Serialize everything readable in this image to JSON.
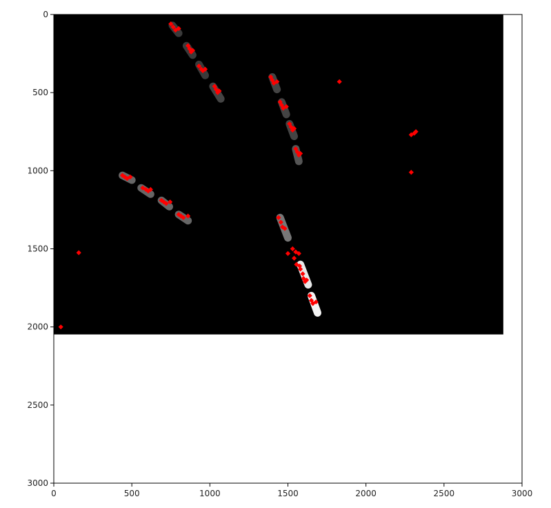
{
  "chart_data": {
    "type": "scatter",
    "title": "",
    "xlabel": "",
    "ylabel": "",
    "xlim": [
      0,
      3000
    ],
    "ylim": [
      3000,
      0
    ],
    "y_inverted": true,
    "grid": false,
    "legend": "none",
    "x_ticks": [
      0,
      500,
      1000,
      1500,
      2000,
      2500,
      3000
    ],
    "y_ticks": [
      0,
      500,
      1000,
      1500,
      2000,
      2500,
      3000
    ],
    "background_image": {
      "kind": "grayscale image",
      "extent_x": [
        0,
        2880
      ],
      "extent_y": [
        0,
        2048
      ],
      "background_color": "#000000",
      "objects": [
        {
          "x1": 760,
          "y1": 70,
          "x2": 800,
          "y2": 120,
          "shade": "#3a3a3a"
        },
        {
          "x1": 850,
          "y1": 200,
          "x2": 890,
          "y2": 260,
          "shade": "#3a3a3a"
        },
        {
          "x1": 930,
          "y1": 320,
          "x2": 970,
          "y2": 390,
          "shade": "#3a3a3a"
        },
        {
          "x1": 1020,
          "y1": 460,
          "x2": 1070,
          "y2": 540,
          "shade": "#444444"
        },
        {
          "x1": 1400,
          "y1": 400,
          "x2": 1430,
          "y2": 480,
          "shade": "#444444"
        },
        {
          "x1": 1460,
          "y1": 560,
          "x2": 1490,
          "y2": 640,
          "shade": "#444444"
        },
        {
          "x1": 1510,
          "y1": 700,
          "x2": 1540,
          "y2": 780,
          "shade": "#444444"
        },
        {
          "x1": 1550,
          "y1": 860,
          "x2": 1570,
          "y2": 940,
          "shade": "#555555"
        },
        {
          "x1": 440,
          "y1": 1030,
          "x2": 500,
          "y2": 1060,
          "shade": "#666666"
        },
        {
          "x1": 560,
          "y1": 1110,
          "x2": 620,
          "y2": 1150,
          "shade": "#666666"
        },
        {
          "x1": 690,
          "y1": 1190,
          "x2": 740,
          "y2": 1230,
          "shade": "#666666"
        },
        {
          "x1": 800,
          "y1": 1280,
          "x2": 860,
          "y2": 1320,
          "shade": "#666666"
        },
        {
          "x1": 1450,
          "y1": 1300,
          "x2": 1500,
          "y2": 1430,
          "shade": "#777777"
        },
        {
          "x1": 1580,
          "y1": 1600,
          "x2": 1630,
          "y2": 1730,
          "shade": "#e8e8e8"
        },
        {
          "x1": 1650,
          "y1": 1800,
          "x2": 1690,
          "y2": 1910,
          "shade": "#f4f4f4"
        }
      ]
    },
    "series": [
      {
        "color": "#ff0000",
        "marker": "diamond",
        "x": [
          45,
          160,
          750,
          765,
          780,
          800,
          860,
          870,
          880,
          890,
          930,
          945,
          955,
          970,
          1030,
          1040,
          1050,
          1060,
          1390,
          1400,
          1410,
          1430,
          1450,
          1460,
          1470,
          1490,
          1510,
          1520,
          1530,
          1540,
          1550,
          1560,
          1570,
          1580,
          440,
          455,
          470,
          490,
          570,
          590,
          605,
          620,
          690,
          705,
          720,
          745,
          800,
          815,
          830,
          860,
          1440,
          1455,
          1465,
          1480,
          1500,
          1530,
          1550,
          1570,
          1540,
          1555,
          1575,
          1580,
          1595,
          1600,
          1610,
          1620,
          1640,
          1650,
          1660,
          1680,
          1830,
          2290,
          2310,
          2320,
          2290
        ],
        "y": [
          2000,
          1525,
          60,
          80,
          100,
          90,
          200,
          220,
          240,
          230,
          330,
          350,
          360,
          350,
          460,
          480,
          500,
          490,
          400,
          420,
          440,
          430,
          560,
          580,
          600,
          590,
          700,
          720,
          740,
          730,
          860,
          880,
          900,
          890,
          1030,
          1040,
          1050,
          1040,
          1110,
          1120,
          1130,
          1120,
          1190,
          1200,
          1210,
          1200,
          1280,
          1290,
          1300,
          1290,
          1300,
          1330,
          1360,
          1370,
          1530,
          1500,
          1520,
          1530,
          1560,
          1600,
          1610,
          1630,
          1660,
          1690,
          1710,
          1700,
          1800,
          1830,
          1850,
          1840,
          430,
          770,
          760,
          750,
          1010
        ]
      }
    ]
  }
}
